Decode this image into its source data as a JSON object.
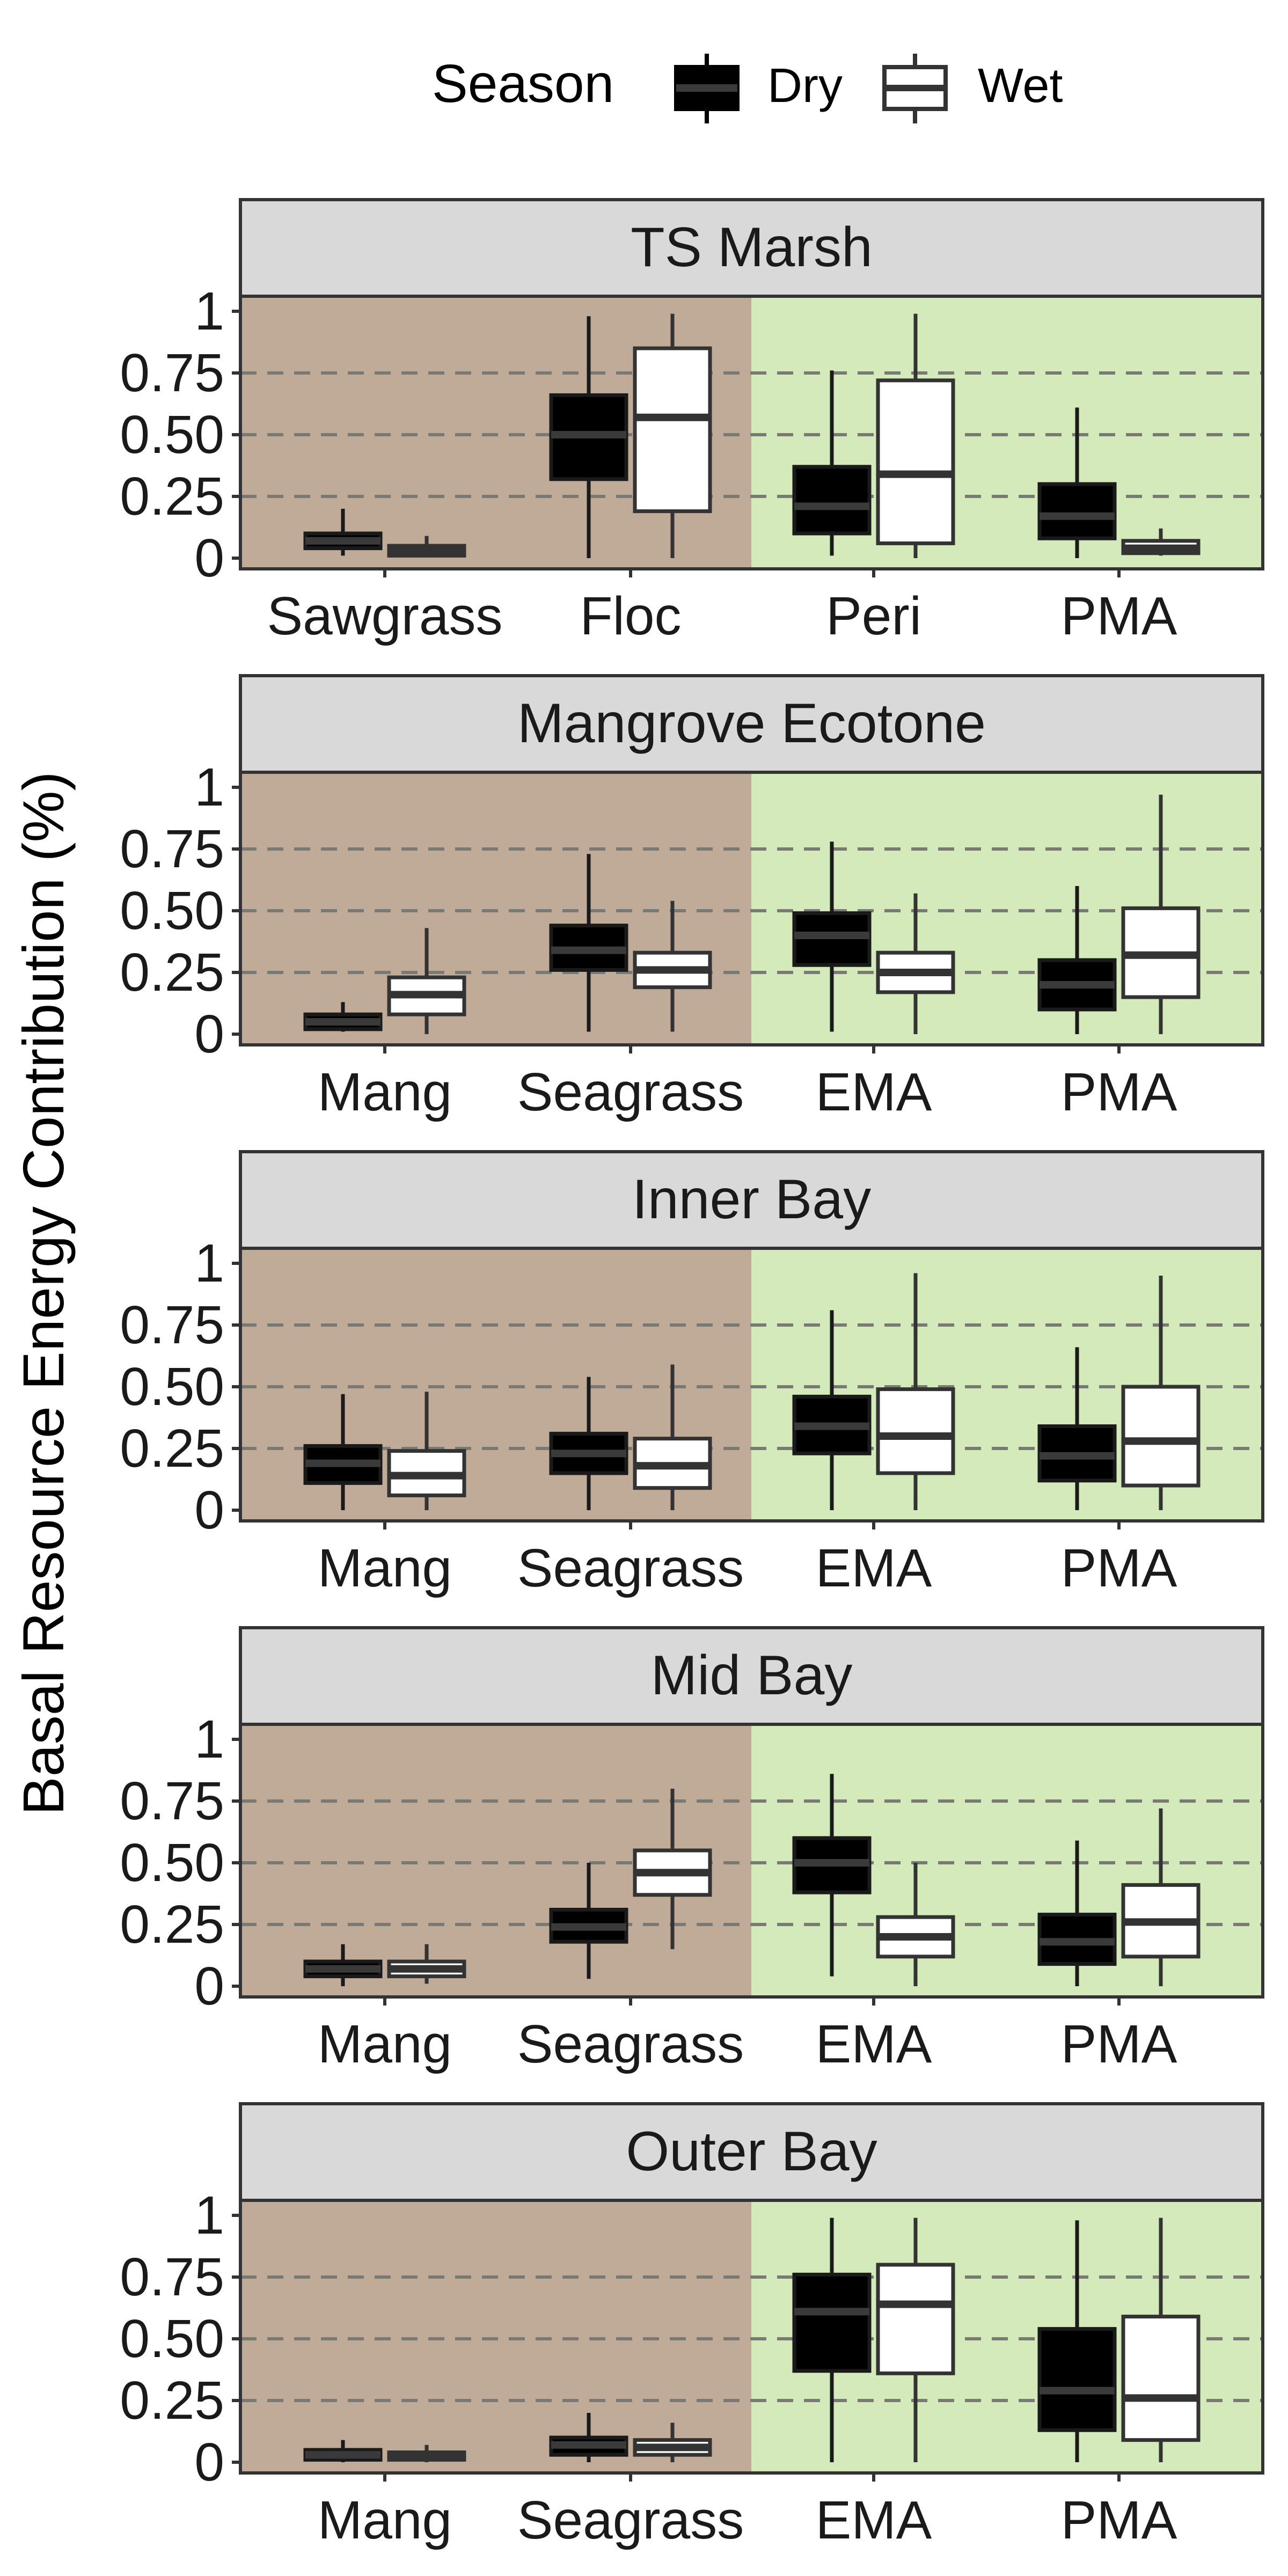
{
  "ylabel": "Basal Resource Energy Contribution (%)",
  "legend": {
    "title": "Season",
    "position": "top",
    "items": [
      {
        "label": "Dry",
        "fill": "#000000"
      },
      {
        "label": "Wet",
        "fill": "#ffffff"
      }
    ]
  },
  "colors": {
    "brown_panel": "#bfab97",
    "green_panel": "#d4eabb",
    "strip": "#d9d9d9",
    "grid_dashed": "#7a7a74",
    "dry_box": "#000000",
    "dry_median": "#3a3a3a",
    "wet_box": "#ffffff",
    "outline": "#333333"
  },
  "chart_data": [
    {
      "type": "boxplot",
      "facet": "TS Marsh",
      "ylim": [
        0,
        1
      ],
      "yticks": [
        "0",
        "0.25",
        "0.50",
        "0.75",
        "1"
      ],
      "ytick_values": [
        0,
        0.25,
        0.5,
        0.75,
        1
      ],
      "categories": [
        "Sawgrass",
        "Floc",
        "Peri",
        "PMA"
      ],
      "series": [
        {
          "name": "Dry",
          "boxes": [
            {
              "min": 0.01,
              "q1": 0.04,
              "median": 0.07,
              "q3": 0.1,
              "max": 0.2
            },
            {
              "min": 0.0,
              "q1": 0.32,
              "median": 0.5,
              "q3": 0.66,
              "max": 0.98
            },
            {
              "min": 0.01,
              "q1": 0.1,
              "median": 0.21,
              "q3": 0.37,
              "max": 0.76
            },
            {
              "min": 0.0,
              "q1": 0.08,
              "median": 0.17,
              "q3": 0.3,
              "max": 0.61
            }
          ]
        },
        {
          "name": "Wet",
          "boxes": [
            {
              "min": 0.01,
              "q1": 0.01,
              "median": 0.03,
              "q3": 0.05,
              "max": 0.09
            },
            {
              "min": 0.0,
              "q1": 0.19,
              "median": 0.57,
              "q3": 0.85,
              "max": 0.99
            },
            {
              "min": 0.0,
              "q1": 0.06,
              "median": 0.34,
              "q3": 0.72,
              "max": 0.99
            },
            {
              "min": 0.01,
              "q1": 0.02,
              "median": 0.04,
              "q3": 0.07,
              "max": 0.12
            }
          ]
        }
      ]
    },
    {
      "type": "boxplot",
      "facet": "Mangrove Ecotone",
      "ylim": [
        0,
        1
      ],
      "yticks": [
        "0",
        "0.25",
        "0.50",
        "0.75",
        "1"
      ],
      "ytick_values": [
        0,
        0.25,
        0.5,
        0.75,
        1
      ],
      "categories": [
        "Mang",
        "Seagrass",
        "EMA",
        "PMA"
      ],
      "series": [
        {
          "name": "Dry",
          "boxes": [
            {
              "min": 0.01,
              "q1": 0.02,
              "median": 0.05,
              "q3": 0.08,
              "max": 0.13
            },
            {
              "min": 0.01,
              "q1": 0.26,
              "median": 0.34,
              "q3": 0.44,
              "max": 0.73
            },
            {
              "min": 0.01,
              "q1": 0.28,
              "median": 0.4,
              "q3": 0.49,
              "max": 0.78
            },
            {
              "min": 0.0,
              "q1": 0.1,
              "median": 0.2,
              "q3": 0.3,
              "max": 0.6
            }
          ]
        },
        {
          "name": "Wet",
          "boxes": [
            {
              "min": 0.0,
              "q1": 0.08,
              "median": 0.16,
              "q3": 0.23,
              "max": 0.43
            },
            {
              "min": 0.01,
              "q1": 0.19,
              "median": 0.26,
              "q3": 0.33,
              "max": 0.54
            },
            {
              "min": 0.0,
              "q1": 0.17,
              "median": 0.25,
              "q3": 0.33,
              "max": 0.57
            },
            {
              "min": 0.0,
              "q1": 0.15,
              "median": 0.32,
              "q3": 0.51,
              "max": 0.97
            }
          ]
        }
      ]
    },
    {
      "type": "boxplot",
      "facet": "Inner Bay",
      "ylim": [
        0,
        1
      ],
      "yticks": [
        "0",
        "0.25",
        "0.50",
        "0.75",
        "1"
      ],
      "ytick_values": [
        0,
        0.25,
        0.5,
        0.75,
        1
      ],
      "categories": [
        "Mang",
        "Seagrass",
        "EMA",
        "PMA"
      ],
      "series": [
        {
          "name": "Dry",
          "boxes": [
            {
              "min": 0.0,
              "q1": 0.11,
              "median": 0.19,
              "q3": 0.26,
              "max": 0.47
            },
            {
              "min": 0.0,
              "q1": 0.15,
              "median": 0.23,
              "q3": 0.31,
              "max": 0.54
            },
            {
              "min": 0.0,
              "q1": 0.23,
              "median": 0.34,
              "q3": 0.46,
              "max": 0.81
            },
            {
              "min": 0.0,
              "q1": 0.12,
              "median": 0.22,
              "q3": 0.34,
              "max": 0.66
            }
          ]
        },
        {
          "name": "Wet",
          "boxes": [
            {
              "min": 0.0,
              "q1": 0.06,
              "median": 0.14,
              "q3": 0.24,
              "max": 0.48
            },
            {
              "min": 0.0,
              "q1": 0.09,
              "median": 0.18,
              "q3": 0.29,
              "max": 0.59
            },
            {
              "min": 0.0,
              "q1": 0.15,
              "median": 0.3,
              "q3": 0.49,
              "max": 0.96
            },
            {
              "min": 0.0,
              "q1": 0.1,
              "median": 0.28,
              "q3": 0.5,
              "max": 0.95
            }
          ]
        }
      ]
    },
    {
      "type": "boxplot",
      "facet": "Mid Bay",
      "ylim": [
        0,
        1
      ],
      "yticks": [
        "0",
        "0.25",
        "0.50",
        "0.75",
        "1"
      ],
      "ytick_values": [
        0,
        0.25,
        0.5,
        0.75,
        1
      ],
      "categories": [
        "Mang",
        "Seagrass",
        "EMA",
        "PMA"
      ],
      "series": [
        {
          "name": "Dry",
          "boxes": [
            {
              "min": 0.0,
              "q1": 0.04,
              "median": 0.07,
              "q3": 0.1,
              "max": 0.17
            },
            {
              "min": 0.03,
              "q1": 0.18,
              "median": 0.24,
              "q3": 0.31,
              "max": 0.5
            },
            {
              "min": 0.04,
              "q1": 0.38,
              "median": 0.5,
              "q3": 0.6,
              "max": 0.86
            },
            {
              "min": 0.0,
              "q1": 0.09,
              "median": 0.18,
              "q3": 0.29,
              "max": 0.59
            }
          ]
        },
        {
          "name": "Wet",
          "boxes": [
            {
              "min": 0.01,
              "q1": 0.04,
              "median": 0.07,
              "q3": 0.1,
              "max": 0.17
            },
            {
              "min": 0.15,
              "q1": 0.37,
              "median": 0.46,
              "q3": 0.55,
              "max": 0.8
            },
            {
              "min": 0.0,
              "q1": 0.12,
              "median": 0.2,
              "q3": 0.28,
              "max": 0.5
            },
            {
              "min": 0.0,
              "q1": 0.12,
              "median": 0.26,
              "q3": 0.41,
              "max": 0.72
            }
          ]
        }
      ]
    },
    {
      "type": "boxplot",
      "facet": "Outer Bay",
      "ylim": [
        0,
        1
      ],
      "yticks": [
        "0",
        "0.25",
        "0.50",
        "0.75",
        "1"
      ],
      "ytick_values": [
        0,
        0.25,
        0.5,
        0.75,
        1
      ],
      "categories": [
        "Mang",
        "Seagrass",
        "EMA",
        "PMA"
      ],
      "series": [
        {
          "name": "Dry",
          "boxes": [
            {
              "min": 0.0,
              "q1": 0.01,
              "median": 0.03,
              "q3": 0.05,
              "max": 0.09
            },
            {
              "min": 0.0,
              "q1": 0.03,
              "median": 0.07,
              "q3": 0.1,
              "max": 0.2
            },
            {
              "min": 0.0,
              "q1": 0.37,
              "median": 0.61,
              "q3": 0.76,
              "max": 0.99
            },
            {
              "min": 0.0,
              "q1": 0.13,
              "median": 0.29,
              "q3": 0.54,
              "max": 0.98
            }
          ]
        },
        {
          "name": "Wet",
          "boxes": [
            {
              "min": 0.0,
              "q1": 0.01,
              "median": 0.02,
              "q3": 0.04,
              "max": 0.07
            },
            {
              "min": 0.0,
              "q1": 0.03,
              "median": 0.06,
              "q3": 0.09,
              "max": 0.16
            },
            {
              "min": 0.0,
              "q1": 0.36,
              "median": 0.64,
              "q3": 0.8,
              "max": 0.99
            },
            {
              "min": 0.0,
              "q1": 0.09,
              "median": 0.26,
              "q3": 0.59,
              "max": 0.99
            }
          ]
        }
      ]
    }
  ]
}
